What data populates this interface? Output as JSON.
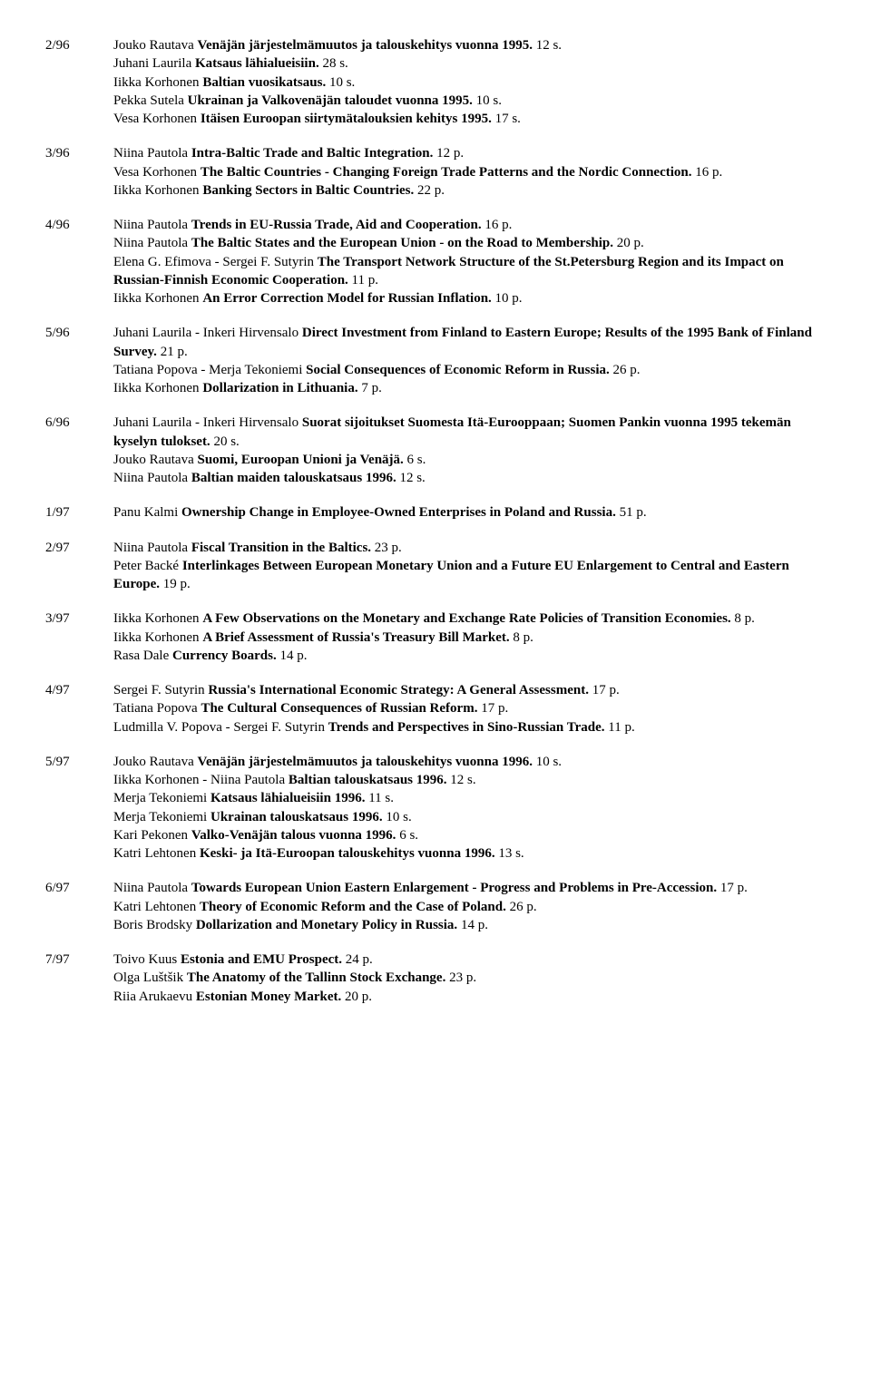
{
  "entries": [
    {
      "issue": "2/96",
      "items": [
        {
          "parts": [
            {
              "t": "author",
              "v": "Jouko Rautava "
            },
            {
              "t": "title",
              "v": "Venäjän järjestelmämuutos ja talouskehitys vuonna 1995."
            },
            {
              "t": "pages",
              "v": " 12 s."
            }
          ]
        },
        {
          "parts": [
            {
              "t": "author",
              "v": "Juhani Laurila "
            },
            {
              "t": "title",
              "v": "Katsaus lähialueisiin."
            },
            {
              "t": "pages",
              "v": " 28 s."
            }
          ]
        },
        {
          "parts": [
            {
              "t": "author",
              "v": "Iikka Korhonen "
            },
            {
              "t": "title",
              "v": "Baltian vuosikatsaus."
            },
            {
              "t": "pages",
              "v": " 10 s."
            }
          ]
        },
        {
          "parts": [
            {
              "t": "author",
              "v": "Pekka Sutela "
            },
            {
              "t": "title",
              "v": "Ukrainan ja Valkovenäjän taloudet vuonna 1995."
            },
            {
              "t": "pages",
              "v": " 10 s."
            }
          ]
        },
        {
          "parts": [
            {
              "t": "author",
              "v": "Vesa Korhonen "
            },
            {
              "t": "title",
              "v": "Itäisen Euroopan siirtymätalouksien kehitys 1995."
            },
            {
              "t": "pages",
              "v": " 17 s."
            }
          ]
        }
      ]
    },
    {
      "issue": "3/96",
      "items": [
        {
          "parts": [
            {
              "t": "author",
              "v": "Niina Pautola "
            },
            {
              "t": "title",
              "v": "Intra-Baltic Trade and Baltic Integration."
            },
            {
              "t": "pages",
              "v": " 12 p."
            }
          ]
        },
        {
          "parts": [
            {
              "t": "author",
              "v": "Vesa Korhonen "
            },
            {
              "t": "title",
              "v": "The Baltic Countries - Changing Foreign Trade Patterns and the Nordic Connection."
            },
            {
              "t": "pages",
              "v": " 16 p."
            }
          ]
        },
        {
          "parts": [
            {
              "t": "author",
              "v": "Iikka Korhonen "
            },
            {
              "t": "title",
              "v": "Banking Sectors in Baltic Countries."
            },
            {
              "t": "pages",
              "v": " 22 p."
            }
          ]
        }
      ]
    },
    {
      "issue": "4/96",
      "items": [
        {
          "parts": [
            {
              "t": "author",
              "v": "Niina Pautola "
            },
            {
              "t": "title",
              "v": "Trends in EU-Russia Trade, Aid and Cooperation."
            },
            {
              "t": "pages",
              "v": " 16 p."
            }
          ]
        },
        {
          "parts": [
            {
              "t": "author",
              "v": "Niina Pautola "
            },
            {
              "t": "title",
              "v": "The Baltic States and the European Union - on the Road to Membership."
            },
            {
              "t": "pages",
              "v": " 20 p."
            }
          ]
        },
        {
          "parts": [
            {
              "t": "author",
              "v": "Elena G. Efimova - Sergei F. Sutyrin "
            },
            {
              "t": "title",
              "v": "The Transport Network Structure of the St.Petersburg Region and its Impact on Russian-Finnish Economic Cooperation."
            },
            {
              "t": "pages",
              "v": " 11 p."
            }
          ]
        },
        {
          "parts": [
            {
              "t": "author",
              "v": "Iikka Korhonen "
            },
            {
              "t": "title",
              "v": "An Error Correction Model for Russian Inflation."
            },
            {
              "t": "pages",
              "v": " 10 p."
            }
          ]
        }
      ]
    },
    {
      "issue": "5/96",
      "items": [
        {
          "parts": [
            {
              "t": "author",
              "v": "Juhani Laurila - Inkeri Hirvensalo "
            },
            {
              "t": "title",
              "v": "Direct Investment from Finland to Eastern Europe; Results of the 1995 Bank of Finland Survey."
            },
            {
              "t": "pages",
              "v": " 21 p."
            }
          ]
        },
        {
          "parts": [
            {
              "t": "author",
              "v": "Tatiana Popova - Merja Tekoniemi "
            },
            {
              "t": "title",
              "v": "Social Consequences of Economic Reform in Russia."
            },
            {
              "t": "pages",
              "v": " 26 p."
            }
          ]
        },
        {
          "parts": [
            {
              "t": "author",
              "v": " Iikka Korhonen "
            },
            {
              "t": "title",
              "v": "Dollarization in Lithuania."
            },
            {
              "t": "pages",
              "v": " 7 p."
            }
          ]
        }
      ]
    },
    {
      "issue": "6/96",
      "items": [
        {
          "parts": [
            {
              "t": "author",
              "v": "Juhani Laurila - Inkeri Hirvensalo "
            },
            {
              "t": "title",
              "v": "Suorat sijoitukset Suomesta Itä-Eurooppaan; Suomen Pankin vuonna 1995 tekemän kyselyn tulokset."
            },
            {
              "t": "pages",
              "v": " 20 s."
            }
          ]
        },
        {
          "parts": [
            {
              "t": "author",
              "v": "Jouko Rautava "
            },
            {
              "t": "title",
              "v": "Suomi, Euroopan Unioni ja Venäjä."
            },
            {
              "t": "pages",
              "v": " 6 s."
            }
          ]
        },
        {
          "parts": [
            {
              "t": "author",
              "v": "Niina Pautola "
            },
            {
              "t": "title",
              "v": "Baltian maiden talouskatsaus 1996."
            },
            {
              "t": "pages",
              "v": " 12 s."
            }
          ]
        }
      ]
    },
    {
      "issue": "1/97",
      "items": [
        {
          "parts": [
            {
              "t": "author",
              "v": "Panu Kalmi "
            },
            {
              "t": "title",
              "v": "Ownership Change in Employee-Owned Enterprises in Poland and Russia."
            },
            {
              "t": "pages",
              "v": " 51 p."
            }
          ]
        }
      ]
    },
    {
      "issue": "2/97",
      "items": [
        {
          "parts": [
            {
              "t": "author",
              "v": "Niina Pautola "
            },
            {
              "t": "title",
              "v": "Fiscal Transition in the Baltics."
            },
            {
              "t": "pages",
              "v": " 23 p."
            }
          ]
        },
        {
          "parts": [
            {
              "t": "author",
              "v": "Peter Backé "
            },
            {
              "t": "title",
              "v": "Interlinkages Between European Monetary Union and a Future EU Enlargement to Central and Eastern Europe."
            },
            {
              "t": "pages",
              "v": " 19 p."
            }
          ]
        }
      ]
    },
    {
      "issue": "3/97",
      "items": [
        {
          "parts": [
            {
              "t": "author",
              "v": "Iikka Korhonen "
            },
            {
              "t": "title",
              "v": "A Few Observations on the Monetary and Exchange Rate Policies of Transition Economies."
            },
            {
              "t": "pages",
              "v": " 8 p."
            }
          ]
        },
        {
          "parts": [
            {
              "t": "author",
              "v": "Iikka Korhonen "
            },
            {
              "t": "title",
              "v": "A Brief Assessment of Russia's Treasury Bill Market."
            },
            {
              "t": "pages",
              "v": " 8 p."
            }
          ]
        },
        {
          "parts": [
            {
              "t": "author",
              "v": "Rasa Dale "
            },
            {
              "t": "title",
              "v": "Currency Boards."
            },
            {
              "t": "pages",
              "v": "  14 p."
            }
          ]
        }
      ]
    },
    {
      "issue": "4/97",
      "items": [
        {
          "parts": [
            {
              "t": "author",
              "v": "Sergei F. Sutyrin "
            },
            {
              "t": "title",
              "v": "Russia's International Economic Strategy: A General Assessment."
            },
            {
              "t": "pages",
              "v": " 17 p."
            }
          ]
        },
        {
          "parts": [
            {
              "t": "author",
              "v": "Tatiana Popova "
            },
            {
              "t": "title",
              "v": "The Cultural Consequences of Russian Reform."
            },
            {
              "t": "pages",
              "v": " 17 p."
            }
          ]
        },
        {
          "parts": [
            {
              "t": "author",
              "v": "Ludmilla V. Popova - Sergei F. Sutyrin "
            },
            {
              "t": "title",
              "v": "Trends and Perspectives in Sino-Russian Trade."
            },
            {
              "t": "pages",
              "v": " 11 p."
            }
          ]
        }
      ]
    },
    {
      "issue": "5/97",
      "items": [
        {
          "parts": [
            {
              "t": "author",
              "v": "Jouko Rautava "
            },
            {
              "t": "title",
              "v": "Venäjän järjestelmämuutos ja talouskehitys vuonna 1996."
            },
            {
              "t": "pages",
              "v": " 10 s."
            }
          ]
        },
        {
          "parts": [
            {
              "t": "author",
              "v": "Iikka Korhonen - Niina Pautola "
            },
            {
              "t": "title",
              "v": "Baltian talouskatsaus 1996."
            },
            {
              "t": "pages",
              "v": " 12 s."
            }
          ]
        },
        {
          "parts": [
            {
              "t": "author",
              "v": "Merja Tekoniemi "
            },
            {
              "t": "title",
              "v": "Katsaus lähialueisiin 1996."
            },
            {
              "t": "pages",
              "v": " 11 s."
            }
          ]
        },
        {
          "parts": [
            {
              "t": "author",
              "v": "Merja Tekoniemi "
            },
            {
              "t": "title",
              "v": "Ukrainan talouskatsaus 1996."
            },
            {
              "t": "pages",
              "v": " 10 s."
            }
          ]
        },
        {
          "parts": [
            {
              "t": "author",
              "v": "Kari Pekonen "
            },
            {
              "t": "title",
              "v": "Valko-Venäjän talous vuonna 1996."
            },
            {
              "t": "pages",
              "v": " 6 s."
            }
          ]
        },
        {
          "parts": [
            {
              "t": "author",
              "v": "Katri Lehtonen "
            },
            {
              "t": "title",
              "v": "Keski- ja Itä-Euroopan talouskehitys vuonna 1996."
            },
            {
              "t": "pages",
              "v": " 13 s."
            }
          ]
        }
      ]
    },
    {
      "issue": "6/97",
      "items": [
        {
          "parts": [
            {
              "t": "author",
              "v": "Niina Pautola "
            },
            {
              "t": "title",
              "v": "Towards European Union Eastern Enlargement - Progress and Problems in Pre-Accession."
            },
            {
              "t": "pages",
              "v": " 17 p."
            }
          ]
        },
        {
          "parts": [
            {
              "t": "author",
              "v": "Katri Lehtonen "
            },
            {
              "t": "title",
              "v": "Theory of Economic Reform and the Case of Poland."
            },
            {
              "t": "pages",
              "v": " 26 p."
            }
          ]
        },
        {
          "parts": [
            {
              "t": "author",
              "v": "Boris Brodsky "
            },
            {
              "t": "title",
              "v": "Dollarization and Monetary Policy  in Russia."
            },
            {
              "t": "pages",
              "v": " 14 p."
            }
          ]
        }
      ]
    },
    {
      "issue": "7/97",
      "items": [
        {
          "parts": [
            {
              "t": "author",
              "v": "Toivo Kuus "
            },
            {
              "t": "title",
              "v": "Estonia and EMU Prospect."
            },
            {
              "t": "pages",
              "v": " 24 p."
            }
          ]
        },
        {
          "parts": [
            {
              "t": "author",
              "v": "Olga Luštšik "
            },
            {
              "t": "title",
              "v": "The Anatomy of the Tallinn Stock Exchange."
            },
            {
              "t": "pages",
              "v": " 23 p."
            }
          ]
        },
        {
          "parts": [
            {
              "t": "author",
              "v": "Riia Arukaevu "
            },
            {
              "t": "title",
              "v": "Estonian Money Market."
            },
            {
              "t": "pages",
              "v": " 20 p."
            }
          ]
        }
      ]
    }
  ]
}
